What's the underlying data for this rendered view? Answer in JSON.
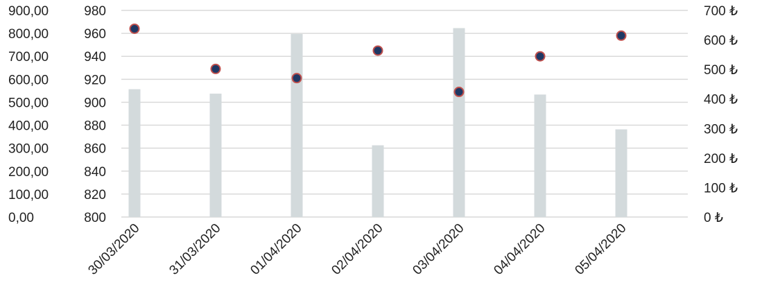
{
  "chart_data": {
    "type": "bar",
    "categories": [
      "30/03/2020",
      "31/03/2020",
      "01/04/2020",
      "02/04/2020",
      "03/04/2020",
      "04/04/2020",
      "05/04/2020"
    ],
    "series": [
      {
        "type": "bar",
        "axis": "right",
        "values": [
          433,
          418,
          620,
          243,
          640,
          415,
          297
        ]
      },
      {
        "type": "scatter",
        "axis": "middle",
        "values": [
          964,
          929,
          921,
          945,
          909,
          940,
          958
        ]
      }
    ],
    "axes": {
      "left": {
        "ticks": [
          "0,00",
          "100,00",
          "200,00",
          "300,00",
          "400,00",
          "500,00",
          "600,00",
          "700,00",
          "800,00",
          "900,00"
        ],
        "range": [
          0,
          900
        ]
      },
      "middle": {
        "ticks": [
          "800",
          "820",
          "840",
          "860",
          "880",
          "900",
          "920",
          "940",
          "960",
          "980"
        ],
        "range": [
          800,
          980
        ]
      },
      "right": {
        "ticks": [
          "0 ₺",
          "100 ₺",
          "200 ₺",
          "300 ₺",
          "400 ₺",
          "500 ₺",
          "600 ₺",
          "700 ₺"
        ],
        "range": [
          0,
          700
        ]
      }
    },
    "grid": true,
    "colors": {
      "bar": "#d3dadc",
      "marker_fill": "#1f3864",
      "marker_edge": "#c0504d",
      "grid": "#d9d9d9"
    }
  }
}
